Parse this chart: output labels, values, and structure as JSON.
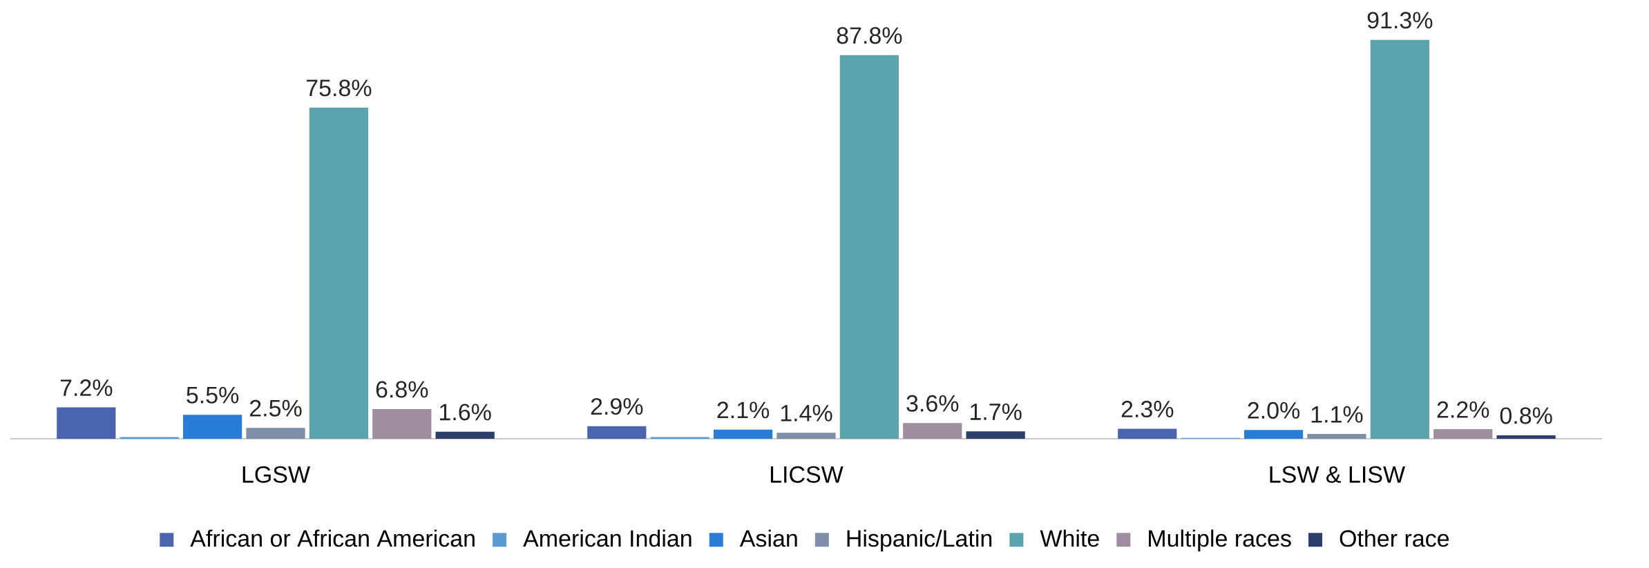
{
  "chart_data": {
    "type": "bar",
    "categories": [
      "LGSW",
      "LICSW",
      "LSW & LISW"
    ],
    "legend": "bottom",
    "series": [
      {
        "name": "African or African American",
        "color": "#4a65ad",
        "values": [
          7.2,
          2.9,
          2.3
        ],
        "value_labels": [
          "7.2%",
          "2.9%",
          "2.3%"
        ]
      },
      {
        "name": "American Indian",
        "color": "#5b9bd5",
        "values": [
          0.4,
          0.4,
          0.2
        ],
        "value_labels": [
          null,
          null,
          null
        ]
      },
      {
        "name": "Asian",
        "color": "#2a7dd6",
        "values": [
          5.5,
          2.1,
          2.0
        ],
        "value_labels": [
          "5.5%",
          "2.1%",
          "2.0%"
        ]
      },
      {
        "name": "Hispanic/Latin",
        "color": "#7f8fa9",
        "values": [
          2.5,
          1.4,
          1.1
        ],
        "value_labels": [
          "2.5%",
          "1.4%",
          "1.1%"
        ]
      },
      {
        "name": "White",
        "color": "#5ba3ad",
        "values": [
          75.8,
          87.8,
          91.3
        ],
        "value_labels": [
          "75.8%",
          "87.8%",
          "91.3%"
        ]
      },
      {
        "name": "Multiple races",
        "color": "#9e8e9f",
        "values": [
          6.8,
          3.6,
          2.2
        ],
        "value_labels": [
          "6.8%",
          "3.6%",
          "2.2%"
        ]
      },
      {
        "name": "Other race",
        "color": "#2c3e6b",
        "values": [
          1.6,
          1.7,
          0.8
        ],
        "value_labels": [
          "1.6%",
          "1.7%",
          "0.8%"
        ]
      }
    ]
  }
}
